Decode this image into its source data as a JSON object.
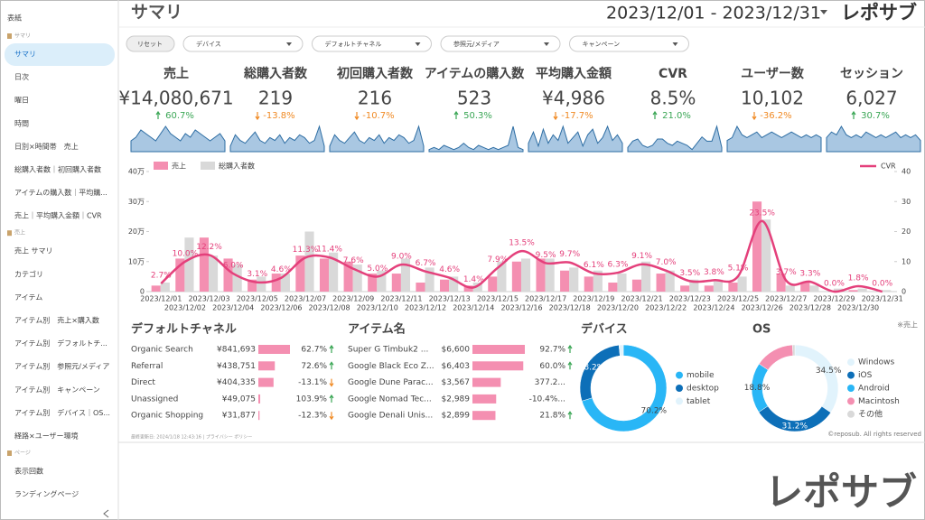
{
  "sidebar": {
    "cover": "表紙",
    "sections": [
      {
        "title": "サマリ",
        "items": [
          "サマリ",
          "日次",
          "曜日",
          "時間",
          "日別×時間帯　売上",
          "総購入者数｜初回購入者数",
          "アイテムの購入数｜平均購...",
          "売上｜平均購入金額｜CVR"
        ]
      },
      {
        "title": "売上",
        "items": [
          "売上 サマリ",
          "カテゴリ",
          "アイテム",
          "アイテム別　売上×購入数",
          "アイテム別　デフォルトチ...",
          "アイテム別　参照元/メディア",
          "アイテム別　キャンペーン",
          "アイテム別　デバイス｜OS...",
          "経路×ユーザー環境"
        ]
      },
      {
        "title": "ページ",
        "items": [
          "表示回数",
          "ランディングページ"
        ]
      }
    ]
  },
  "header": {
    "title": "サマリ",
    "date_range": "2023/12/01 - 2023/12/31",
    "brand": "レポサブ"
  },
  "filters": {
    "reset": "リセット",
    "dropdowns": [
      "デバイス",
      "デフォルトチャネル",
      "参照元/メディア",
      "キャンペーン"
    ]
  },
  "kpis": [
    {
      "label": "売上",
      "value": "¥14,080,671",
      "change": "60.7%",
      "trend": "up",
      "spark": [
        3,
        4,
        6,
        5,
        4,
        3,
        5,
        7,
        5,
        4,
        3,
        5,
        4,
        6,
        5,
        4,
        3,
        4,
        5,
        3
      ]
    },
    {
      "label": "総購入者数",
      "value": "219",
      "change": "-13.8%",
      "trend": "down",
      "spark": [
        2,
        6,
        4,
        3,
        5,
        7,
        4,
        3,
        5,
        4,
        6,
        3,
        5,
        4,
        6,
        5,
        3,
        4,
        9,
        2
      ]
    },
    {
      "label": "初回購入者数",
      "value": "216",
      "change": "-10.7%",
      "trend": "down",
      "spark": [
        2,
        6,
        4,
        3,
        5,
        7,
        4,
        3,
        5,
        4,
        6,
        3,
        5,
        4,
        6,
        5,
        3,
        4,
        9,
        2
      ]
    },
    {
      "label": "アイテムの購入数",
      "value": "523",
      "change": "50.3%",
      "trend": "up",
      "spark": [
        1,
        2,
        1,
        3,
        2,
        1,
        2,
        4,
        2,
        1,
        3,
        2,
        1,
        2,
        1,
        2,
        3,
        12,
        2,
        1
      ]
    },
    {
      "label": "平均購入金額",
      "value": "¥4,986",
      "change": "-17.7%",
      "trend": "down",
      "spark": [
        3,
        7,
        2,
        8,
        3,
        6,
        4,
        9,
        3,
        5,
        7,
        2,
        6,
        8,
        3,
        5,
        9,
        4,
        6,
        3
      ]
    },
    {
      "label": "CVR",
      "value": "8.5%",
      "change": "21.0%",
      "trend": "up",
      "spark": [
        2,
        5,
        6,
        3,
        2,
        3,
        6,
        6,
        4,
        3,
        5,
        4,
        3,
        1,
        4,
        7,
        5,
        5,
        12,
        2
      ]
    },
    {
      "label": "ユーザー数",
      "value": "10,102",
      "change": "-36.2%",
      "trend": "down",
      "spark": [
        4,
        5,
        9,
        6,
        5,
        6,
        7,
        5,
        6,
        7,
        6,
        5,
        6,
        7,
        6,
        5,
        6,
        5,
        6,
        5
      ]
    },
    {
      "label": "セッション",
      "value": "6,027",
      "change": "30.7%",
      "trend": "up",
      "spark": [
        5,
        7,
        6,
        9,
        6,
        5,
        6,
        5,
        7,
        6,
        5,
        6,
        5,
        6,
        7,
        5,
        6,
        5,
        6,
        4
      ]
    }
  ],
  "chart_data": [
    {
      "type": "combo",
      "categories": [
        "2023/12/01",
        "2023/12/02",
        "2023/12/03",
        "2023/12/04",
        "2023/12/05",
        "2023/12/06",
        "2023/12/07",
        "2023/12/08",
        "2023/12/09",
        "2023/12/10",
        "2023/12/11",
        "2023/12/12",
        "2023/12/13",
        "2023/12/14",
        "2023/12/15",
        "2023/12/16",
        "2023/12/17",
        "2023/12/18",
        "2023/12/19",
        "2023/12/20",
        "2023/12/21",
        "2023/12/22",
        "2023/12/23",
        "2023/12/24",
        "2023/12/25",
        "2023/12/26",
        "2023/12/27",
        "2023/12/28",
        "2023/12/29",
        "2023/12/30",
        "2023/12/31"
      ],
      "series": [
        {
          "name": "売上",
          "type": "bar",
          "color": "#f48fb1",
          "values": [
            20000,
            110000,
            180000,
            110000,
            40000,
            60000,
            120000,
            110000,
            100000,
            60000,
            60000,
            30000,
            40000,
            20000,
            50000,
            100000,
            110000,
            70000,
            50000,
            30000,
            40000,
            60000,
            20000,
            20000,
            30000,
            300000,
            60000,
            30000,
            0,
            5000,
            0
          ]
        },
        {
          "name": "総購入者数",
          "type": "bar",
          "color": "#d9d9d9",
          "values": [
            30000,
            180000,
            120000,
            90000,
            50000,
            60000,
            200000,
            130000,
            90000,
            70000,
            110000,
            80000,
            50000,
            30000,
            100000,
            110000,
            110000,
            80000,
            70000,
            60000,
            100000,
            70000,
            40000,
            40000,
            50000,
            240000,
            20000,
            20000,
            10000,
            10000,
            5000
          ]
        },
        {
          "name": "CVR",
          "type": "line",
          "axis": "y2",
          "color": "#e4407b",
          "values": [
            2.7,
            10.0,
            12.2,
            6.0,
            3.1,
            4.6,
            11.3,
            11.4,
            7.6,
            5.0,
            9.0,
            6.7,
            4.6,
            1.4,
            7.9,
            13.5,
            9.5,
            9.7,
            6.1,
            6.3,
            9.1,
            7.0,
            3.5,
            3.8,
            5.1,
            23.5,
            3.7,
            3.3,
            0.0,
            1.8,
            0.0
          ],
          "value_labels": [
            "2.7%",
            "10.0%",
            "12.2%",
            "6.0%",
            "3.1%",
            "4.6%",
            "11.3%",
            "11.4%",
            "7.6%",
            "5.0%",
            "9.0%",
            "6.7%",
            "4.6%",
            "1.4%",
            "7.9%",
            "13.5%",
            "9.5%",
            "9.7%",
            "6.1%",
            "6.3%",
            "9.1%",
            "7.0%",
            "3.5%",
            "3.8%",
            "5.1%",
            "23.5%",
            "3.7%",
            "3.3%",
            "0.0%",
            "1.8%",
            "0.0%"
          ]
        }
      ],
      "ylim": [
        0,
        400000
      ],
      "yticks": [
        0,
        {
          "value": 100000,
          "label": "10万"
        },
        {
          "value": 200000,
          "label": "20万"
        },
        {
          "value": 300000,
          "label": "30万"
        },
        {
          "value": 400000,
          "label": "40万"
        }
      ],
      "y2lim": [
        0,
        40
      ],
      "y2ticks": [
        0,
        10,
        20,
        30,
        40
      ]
    },
    {
      "type": "donut",
      "title": "デバイス",
      "categories": [
        "mobile",
        "desktop",
        "tablet"
      ],
      "colors": [
        "#29b6f6",
        "#0d6fb8",
        "#e1f3fc"
      ],
      "values": [
        70.2,
        28.2,
        1.6
      ],
      "value_labels": [
        "70.2%",
        "28.2%",
        null
      ]
    },
    {
      "type": "donut",
      "title": "OS",
      "categories": [
        "Windows",
        "iOS",
        "Android",
        "Macintosh",
        "その他"
      ],
      "colors": [
        "#e1f3fc",
        "#0d6fb8",
        "#29b6f6",
        "#f48fb1",
        "#d9d9d9"
      ],
      "values": [
        34.5,
        31.2,
        18.8,
        14.6,
        0.9
      ],
      "value_labels": [
        "34.5%",
        "31.2%",
        "18.8%",
        null,
        null
      ]
    }
  ],
  "tables": [
    {
      "title": "デフォルトチャネル",
      "rows": [
        {
          "name": "Organic Search",
          "value": 841693,
          "value_label": "¥841,693",
          "change": "62.7%",
          "trend": "up"
        },
        {
          "name": "Referral",
          "value": 438751,
          "value_label": "¥438,751",
          "change": "72.6%",
          "trend": "up"
        },
        {
          "name": "Direct",
          "value": 404335,
          "value_label": "¥404,335",
          "change": "-13.1%",
          "trend": "down"
        },
        {
          "name": "Unassigned",
          "value": 49075,
          "value_label": "¥49,075",
          "change": "103.9%",
          "trend": "up"
        },
        {
          "name": "Organic Shopping",
          "value": 31877,
          "value_label": "¥31,877",
          "change": "-12.3%",
          "trend": "down"
        }
      ]
    },
    {
      "title": "アイテム名",
      "rows": [
        {
          "name": "Super G Timbuk2 ...",
          "value": 6600,
          "value_label": "$6,600",
          "change": "92.7%",
          "trend": "up"
        },
        {
          "name": "Google Black Eco Z...",
          "value": 6403,
          "value_label": "$6,403",
          "change": "60.0%",
          "trend": "up"
        },
        {
          "name": "Google Dune Parac...",
          "value": 3567,
          "value_label": "$3,567",
          "change": "377.2...",
          "trend": null
        },
        {
          "name": "Google Nomad Tec...",
          "value": 2989,
          "value_label": "$2,989",
          "change": "-10.4%...",
          "trend": null
        },
        {
          "name": "Google Denali Unis...",
          "value": 2899,
          "value_label": "$2,899",
          "change": "21.8%",
          "trend": "up"
        }
      ]
    }
  ],
  "note": "※売上",
  "footer": {
    "updated": "最終更新日: 2024/1/18 12:43:16 | プライバシー ポリシー",
    "copyright": "©reposub. All rights reserved"
  },
  "watermark": "レポサブ"
}
